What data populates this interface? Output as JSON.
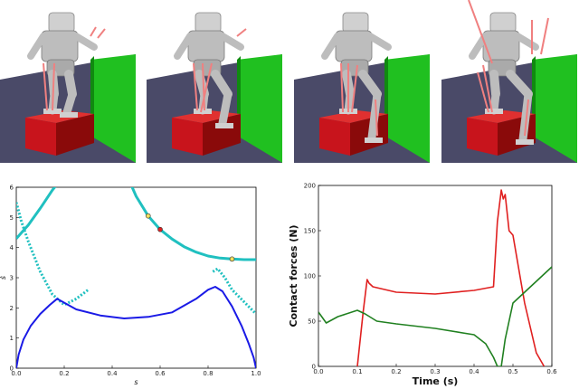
{
  "figure": {
    "panels": [
      {
        "name": "robot-panel-1"
      },
      {
        "name": "robot-panel-2"
      },
      {
        "name": "robot-panel-3"
      },
      {
        "name": "robot-panel-4"
      }
    ]
  },
  "colors": {
    "floor": "#4a4a68",
    "box": "#c8141c",
    "wall": "#20c020",
    "robot": "#bdbdbd",
    "force": "#f08080",
    "cyan": "#20c0c0",
    "blue": "#1a1ae6",
    "red": "#e02020",
    "green": "#208020"
  },
  "chart_data": [
    {
      "type": "line",
      "title": "",
      "xlabel": "s",
      "ylabel": "ṡ",
      "xlim": [
        0,
        1
      ],
      "ylim": [
        0,
        6
      ],
      "xticks": [
        "0.0",
        "0.2",
        "0.4",
        "0.6",
        "0.8",
        "1.0"
      ],
      "yticks": [
        "0",
        "1",
        "2",
        "3",
        "4",
        "5",
        "6"
      ],
      "series": [
        {
          "style": "cyan-solid",
          "x": [
            0.0,
            0.05,
            0.1,
            0.15,
            0.2
          ],
          "y": [
            4.3,
            4.75,
            5.3,
            5.9,
            6.4
          ]
        },
        {
          "style": "cyan-solid",
          "x": [
            0.45,
            0.5,
            0.55,
            0.6,
            0.65,
            0.7,
            0.75,
            0.8,
            0.85,
            0.9,
            0.95,
            1.0
          ],
          "y": [
            6.6,
            5.7,
            5.05,
            4.6,
            4.28,
            4.03,
            3.85,
            3.72,
            3.65,
            3.62,
            3.6,
            3.6
          ]
        },
        {
          "style": "cyan-dotted",
          "x": [
            0.0,
            0.02,
            0.05,
            0.1,
            0.15,
            0.2,
            0.25,
            0.3
          ],
          "y": [
            5.5,
            4.9,
            4.2,
            3.2,
            2.45,
            2.1,
            2.3,
            2.6
          ]
        },
        {
          "style": "cyan-dotted",
          "x": [
            0.82,
            0.84,
            0.87,
            0.9,
            0.95,
            1.0
          ],
          "y": [
            3.2,
            3.3,
            3.0,
            2.6,
            2.2,
            1.8
          ]
        },
        {
          "style": "blue",
          "x": [
            0.0,
            0.01,
            0.03,
            0.06,
            0.1,
            0.14,
            0.17,
            0.25,
            0.35,
            0.45,
            0.55,
            0.65,
            0.75,
            0.8,
            0.83,
            0.86,
            0.9,
            0.94,
            0.97,
            0.99,
            1.0
          ],
          "y": [
            0.0,
            0.45,
            0.95,
            1.4,
            1.8,
            2.1,
            2.3,
            1.95,
            1.75,
            1.65,
            1.7,
            1.85,
            2.3,
            2.6,
            2.7,
            2.55,
            2.05,
            1.4,
            0.8,
            0.35,
            0.0
          ]
        }
      ],
      "points": [
        {
          "x": 0.55,
          "y": 5.05,
          "color": "#f0e060"
        },
        {
          "x": 0.6,
          "y": 4.6,
          "color": "#e02020"
        },
        {
          "x": 0.9,
          "y": 3.62,
          "color": "#f0e060"
        }
      ]
    },
    {
      "type": "line",
      "title": "",
      "xlabel": "Time (s)",
      "ylabel": "Contact forces (N)",
      "xlim": [
        0,
        0.6
      ],
      "ylim": [
        0,
        200
      ],
      "xticks": [
        "0.0",
        "0.1",
        "0.2",
        "0.3",
        "0.4",
        "0.5",
        "0.6"
      ],
      "yticks": [
        "0",
        "50",
        "100",
        "150",
        "200"
      ],
      "series": [
        {
          "color": "#e02020",
          "x": [
            0.1,
            0.115,
            0.125,
            0.13,
            0.14,
            0.16,
            0.2,
            0.3,
            0.4,
            0.45,
            0.46,
            0.47,
            0.475,
            0.48,
            0.49,
            0.5,
            0.53,
            0.56,
            0.58
          ],
          "y": [
            0,
            60,
            96,
            92,
            88,
            86,
            82,
            80,
            84,
            88,
            160,
            195,
            185,
            190,
            150,
            145,
            70,
            15,
            0
          ]
        },
        {
          "color": "#208020",
          "x": [
            0.0,
            0.02,
            0.05,
            0.1,
            0.12,
            0.15,
            0.2,
            0.3,
            0.4,
            0.43,
            0.45,
            0.46,
            0.47,
            0.48,
            0.5,
            0.55,
            0.6
          ],
          "y": [
            60,
            48,
            55,
            62,
            58,
            50,
            47,
            42,
            35,
            25,
            10,
            0,
            0,
            30,
            70,
            90,
            110
          ]
        }
      ]
    }
  ]
}
